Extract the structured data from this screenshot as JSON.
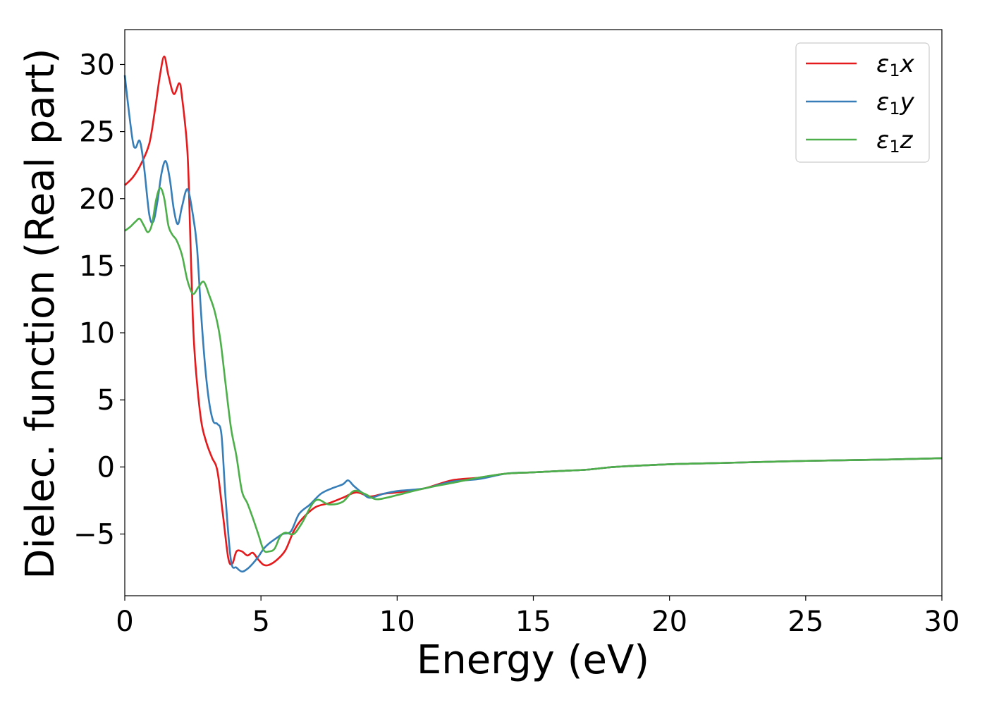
{
  "chart_data": {
    "type": "line",
    "xlabel": "Energy (eV)",
    "ylabel": "Dielec. function (Real part)",
    "xlim": [
      0,
      30
    ],
    "ylim": [
      -9.6,
      32.6
    ],
    "xticks": [
      0,
      5,
      10,
      15,
      20,
      25,
      30
    ],
    "xtick_labels": [
      "0",
      "5",
      "10",
      "15",
      "20",
      "25",
      "30"
    ],
    "yticks": [
      -5,
      0,
      5,
      10,
      15,
      20,
      25,
      30
    ],
    "ytick_labels": [
      "−5",
      "0",
      "5",
      "10",
      "15",
      "20",
      "25",
      "30"
    ],
    "grid": false,
    "legend_position": "top-right",
    "series": [
      {
        "name": "ε1x",
        "legend_main": "ε",
        "legend_sub": "1",
        "legend_suffix": "x",
        "color": "#e41a1c",
        "x": [
          0,
          0.3,
          0.6,
          0.9,
          1.1,
          1.3,
          1.45,
          1.6,
          1.8,
          2.0,
          2.1,
          2.3,
          2.4,
          2.5,
          2.6,
          2.8,
          3.0,
          3.2,
          3.4,
          3.6,
          3.8,
          3.95,
          4.1,
          4.3,
          4.5,
          4.7,
          4.9,
          5.1,
          5.3,
          5.6,
          5.9,
          6.2,
          6.5,
          7.0,
          7.5,
          8.0,
          8.5,
          9.0,
          9.5,
          10.0,
          11.0,
          12.0,
          13.0,
          14.0,
          15.0,
          16.0,
          17.0,
          18.0,
          20.0,
          22.0,
          25.0,
          28.0,
          30.0
        ],
        "y": [
          21,
          21.6,
          22.6,
          24.1,
          26.5,
          29.3,
          30.6,
          29.2,
          27.8,
          28.6,
          27.6,
          23.5,
          17.5,
          11,
          7.5,
          3.5,
          1.8,
          0.7,
          -0.3,
          -3.5,
          -6.8,
          -7.2,
          -6.3,
          -6.3,
          -6.6,
          -6.4,
          -6.9,
          -7.3,
          -7.3,
          -6.9,
          -6.2,
          -4.8,
          -3.9,
          -3.0,
          -2.7,
          -2.3,
          -1.9,
          -2.2,
          -2.0,
          -1.9,
          -1.6,
          -1.0,
          -0.8,
          -0.5,
          -0.4,
          -0.3,
          -0.2,
          0,
          0.2,
          0.3,
          0.45,
          0.55,
          0.65
        ]
      },
      {
        "name": "ε1y",
        "legend_main": "ε",
        "legend_sub": "1",
        "legend_suffix": "y",
        "color": "#377eb8",
        "x": [
          0,
          0.15,
          0.3,
          0.4,
          0.55,
          0.7,
          0.9,
          1.05,
          1.2,
          1.35,
          1.5,
          1.65,
          1.8,
          1.95,
          2.1,
          2.3,
          2.5,
          2.65,
          2.8,
          2.95,
          3.1,
          3.25,
          3.4,
          3.55,
          3.7,
          3.9,
          4.1,
          4.3,
          4.5,
          4.7,
          4.9,
          5.1,
          5.3,
          5.5,
          5.8,
          6.1,
          6.4,
          6.8,
          7.2,
          7.6,
          8.0,
          8.2,
          8.4,
          8.7,
          9.0,
          9.5,
          10.0,
          11.0,
          12.0,
          13.0,
          14.0,
          15.0,
          16.0,
          17.0,
          18.0,
          20.0,
          22.0,
          25.0,
          28.0,
          30.0
        ],
        "y": [
          29.2,
          26.5,
          24.2,
          23.8,
          24.3,
          22.5,
          18.8,
          18.3,
          19.8,
          21.9,
          22.8,
          21.5,
          19.2,
          18.1,
          19.4,
          20.7,
          18.8,
          16.4,
          11.5,
          7.5,
          4.8,
          3.4,
          3.2,
          2.4,
          -2.3,
          -7.0,
          -7.5,
          -7.8,
          -7.6,
          -7.2,
          -6.7,
          -6.1,
          -5.7,
          -5.4,
          -5.0,
          -4.8,
          -3.5,
          -2.8,
          -2.0,
          -1.6,
          -1.3,
          -1.0,
          -1.4,
          -1.9,
          -2.3,
          -2.0,
          -1.8,
          -1.6,
          -1.1,
          -0.9,
          -0.5,
          -0.4,
          -0.3,
          -0.2,
          0,
          0.2,
          0.3,
          0.45,
          0.55,
          0.65
        ]
      },
      {
        "name": "ε1z",
        "legend_main": "ε",
        "legend_sub": "1",
        "legend_suffix": "z",
        "color": "#4daf4a",
        "x": [
          0,
          0.2,
          0.4,
          0.55,
          0.7,
          0.85,
          1.0,
          1.15,
          1.3,
          1.45,
          1.6,
          1.75,
          1.9,
          2.1,
          2.3,
          2.5,
          2.7,
          2.9,
          3.1,
          3.3,
          3.5,
          3.7,
          3.9,
          4.1,
          4.3,
          4.5,
          4.7,
          4.9,
          5.1,
          5.3,
          5.5,
          5.7,
          5.9,
          6.2,
          6.5,
          7.0,
          7.5,
          8.0,
          8.4,
          8.8,
          9.2,
          9.6,
          10.0,
          11.0,
          12.0,
          13.0,
          14.0,
          15.0,
          16.0,
          17.0,
          18.0,
          20.0,
          22.0,
          25.0,
          28.0,
          30.0
        ],
        "y": [
          17.6,
          17.9,
          18.3,
          18.5,
          18.0,
          17.5,
          18.1,
          19.9,
          20.8,
          20.0,
          18.0,
          17.3,
          16.9,
          15.8,
          13.9,
          12.9,
          13.4,
          13.8,
          12.8,
          11.6,
          9.6,
          6.2,
          2.9,
          0.8,
          -1.8,
          -2.7,
          -3.8,
          -5.0,
          -6.2,
          -6.3,
          -6.1,
          -5.2,
          -4.9,
          -5.0,
          -4.2,
          -2.5,
          -2.8,
          -2.6,
          -1.8,
          -2.0,
          -2.4,
          -2.3,
          -2.1,
          -1.6,
          -1.2,
          -0.8,
          -0.5,
          -0.4,
          -0.3,
          -0.2,
          0,
          0.2,
          0.3,
          0.45,
          0.55,
          0.65
        ]
      }
    ]
  }
}
